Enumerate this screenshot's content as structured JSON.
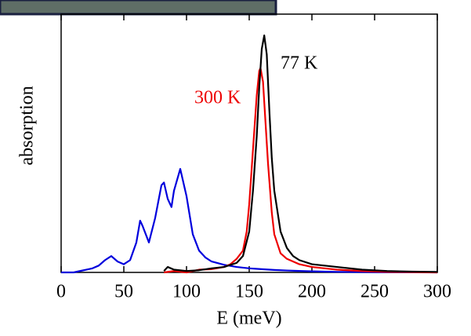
{
  "chart_data": {
    "type": "line",
    "xlabel": "E (meV)",
    "ylabel": "absorption",
    "xlim": [
      0,
      300
    ],
    "xticks": [
      0,
      50,
      100,
      150,
      200,
      250,
      300
    ],
    "ylim": [
      0,
      1
    ],
    "series": [
      {
        "color": "#0000dd",
        "x": [
          0,
          5,
          10,
          15,
          20,
          25,
          30,
          35,
          40,
          45,
          50,
          55,
          60,
          63,
          65,
          70,
          75,
          80,
          82,
          85,
          88,
          90,
          95,
          100,
          105,
          110,
          115,
          120,
          130,
          140,
          150,
          160,
          170,
          180,
          200,
          220,
          250,
          300
        ],
        "values": [
          0,
          0,
          0,
          0.005,
          0.01,
          0.015,
          0.025,
          0.045,
          0.06,
          0.04,
          0.03,
          0.045,
          0.11,
          0.19,
          0.17,
          0.11,
          0.2,
          0.32,
          0.33,
          0.27,
          0.24,
          0.3,
          0.38,
          0.28,
          0.14,
          0.08,
          0.055,
          0.04,
          0.028,
          0.02,
          0.015,
          0.012,
          0.009,
          0.007,
          0.004,
          0.002,
          0.001,
          0
        ]
      },
      {
        "name": "300 K",
        "color": "#ee0000",
        "x": [
          82,
          90,
          100,
          110,
          120,
          130,
          135,
          140,
          145,
          148,
          150,
          153,
          156,
          158,
          159,
          161,
          163,
          165,
          168,
          170,
          175,
          180,
          185,
          190,
          200,
          210,
          220,
          240,
          260,
          280,
          300
        ],
        "values": [
          0,
          0.005,
          0,
          0.01,
          0.012,
          0.02,
          0.03,
          0.05,
          0.08,
          0.15,
          0.25,
          0.45,
          0.65,
          0.74,
          0.75,
          0.7,
          0.55,
          0.4,
          0.22,
          0.14,
          0.07,
          0.05,
          0.04,
          0.03,
          0.02,
          0.015,
          0.01,
          0.005,
          0.002,
          0.001,
          0
        ]
      },
      {
        "name": "77 K",
        "color": "#000000",
        "x": [
          82,
          85,
          90,
          100,
          110,
          120,
          130,
          140,
          145,
          150,
          153,
          156,
          158,
          160,
          162,
          164,
          166,
          168,
          170,
          175,
          180,
          185,
          190,
          200,
          210,
          220,
          240,
          260,
          280,
          300
        ],
        "values": [
          0.005,
          0.02,
          0.01,
          0.005,
          0.008,
          0.015,
          0.02,
          0.035,
          0.06,
          0.15,
          0.3,
          0.5,
          0.68,
          0.82,
          0.87,
          0.8,
          0.6,
          0.42,
          0.3,
          0.15,
          0.09,
          0.06,
          0.045,
          0.03,
          0.025,
          0.02,
          0.01,
          0.005,
          0.003,
          0.002
        ]
      }
    ]
  }
}
